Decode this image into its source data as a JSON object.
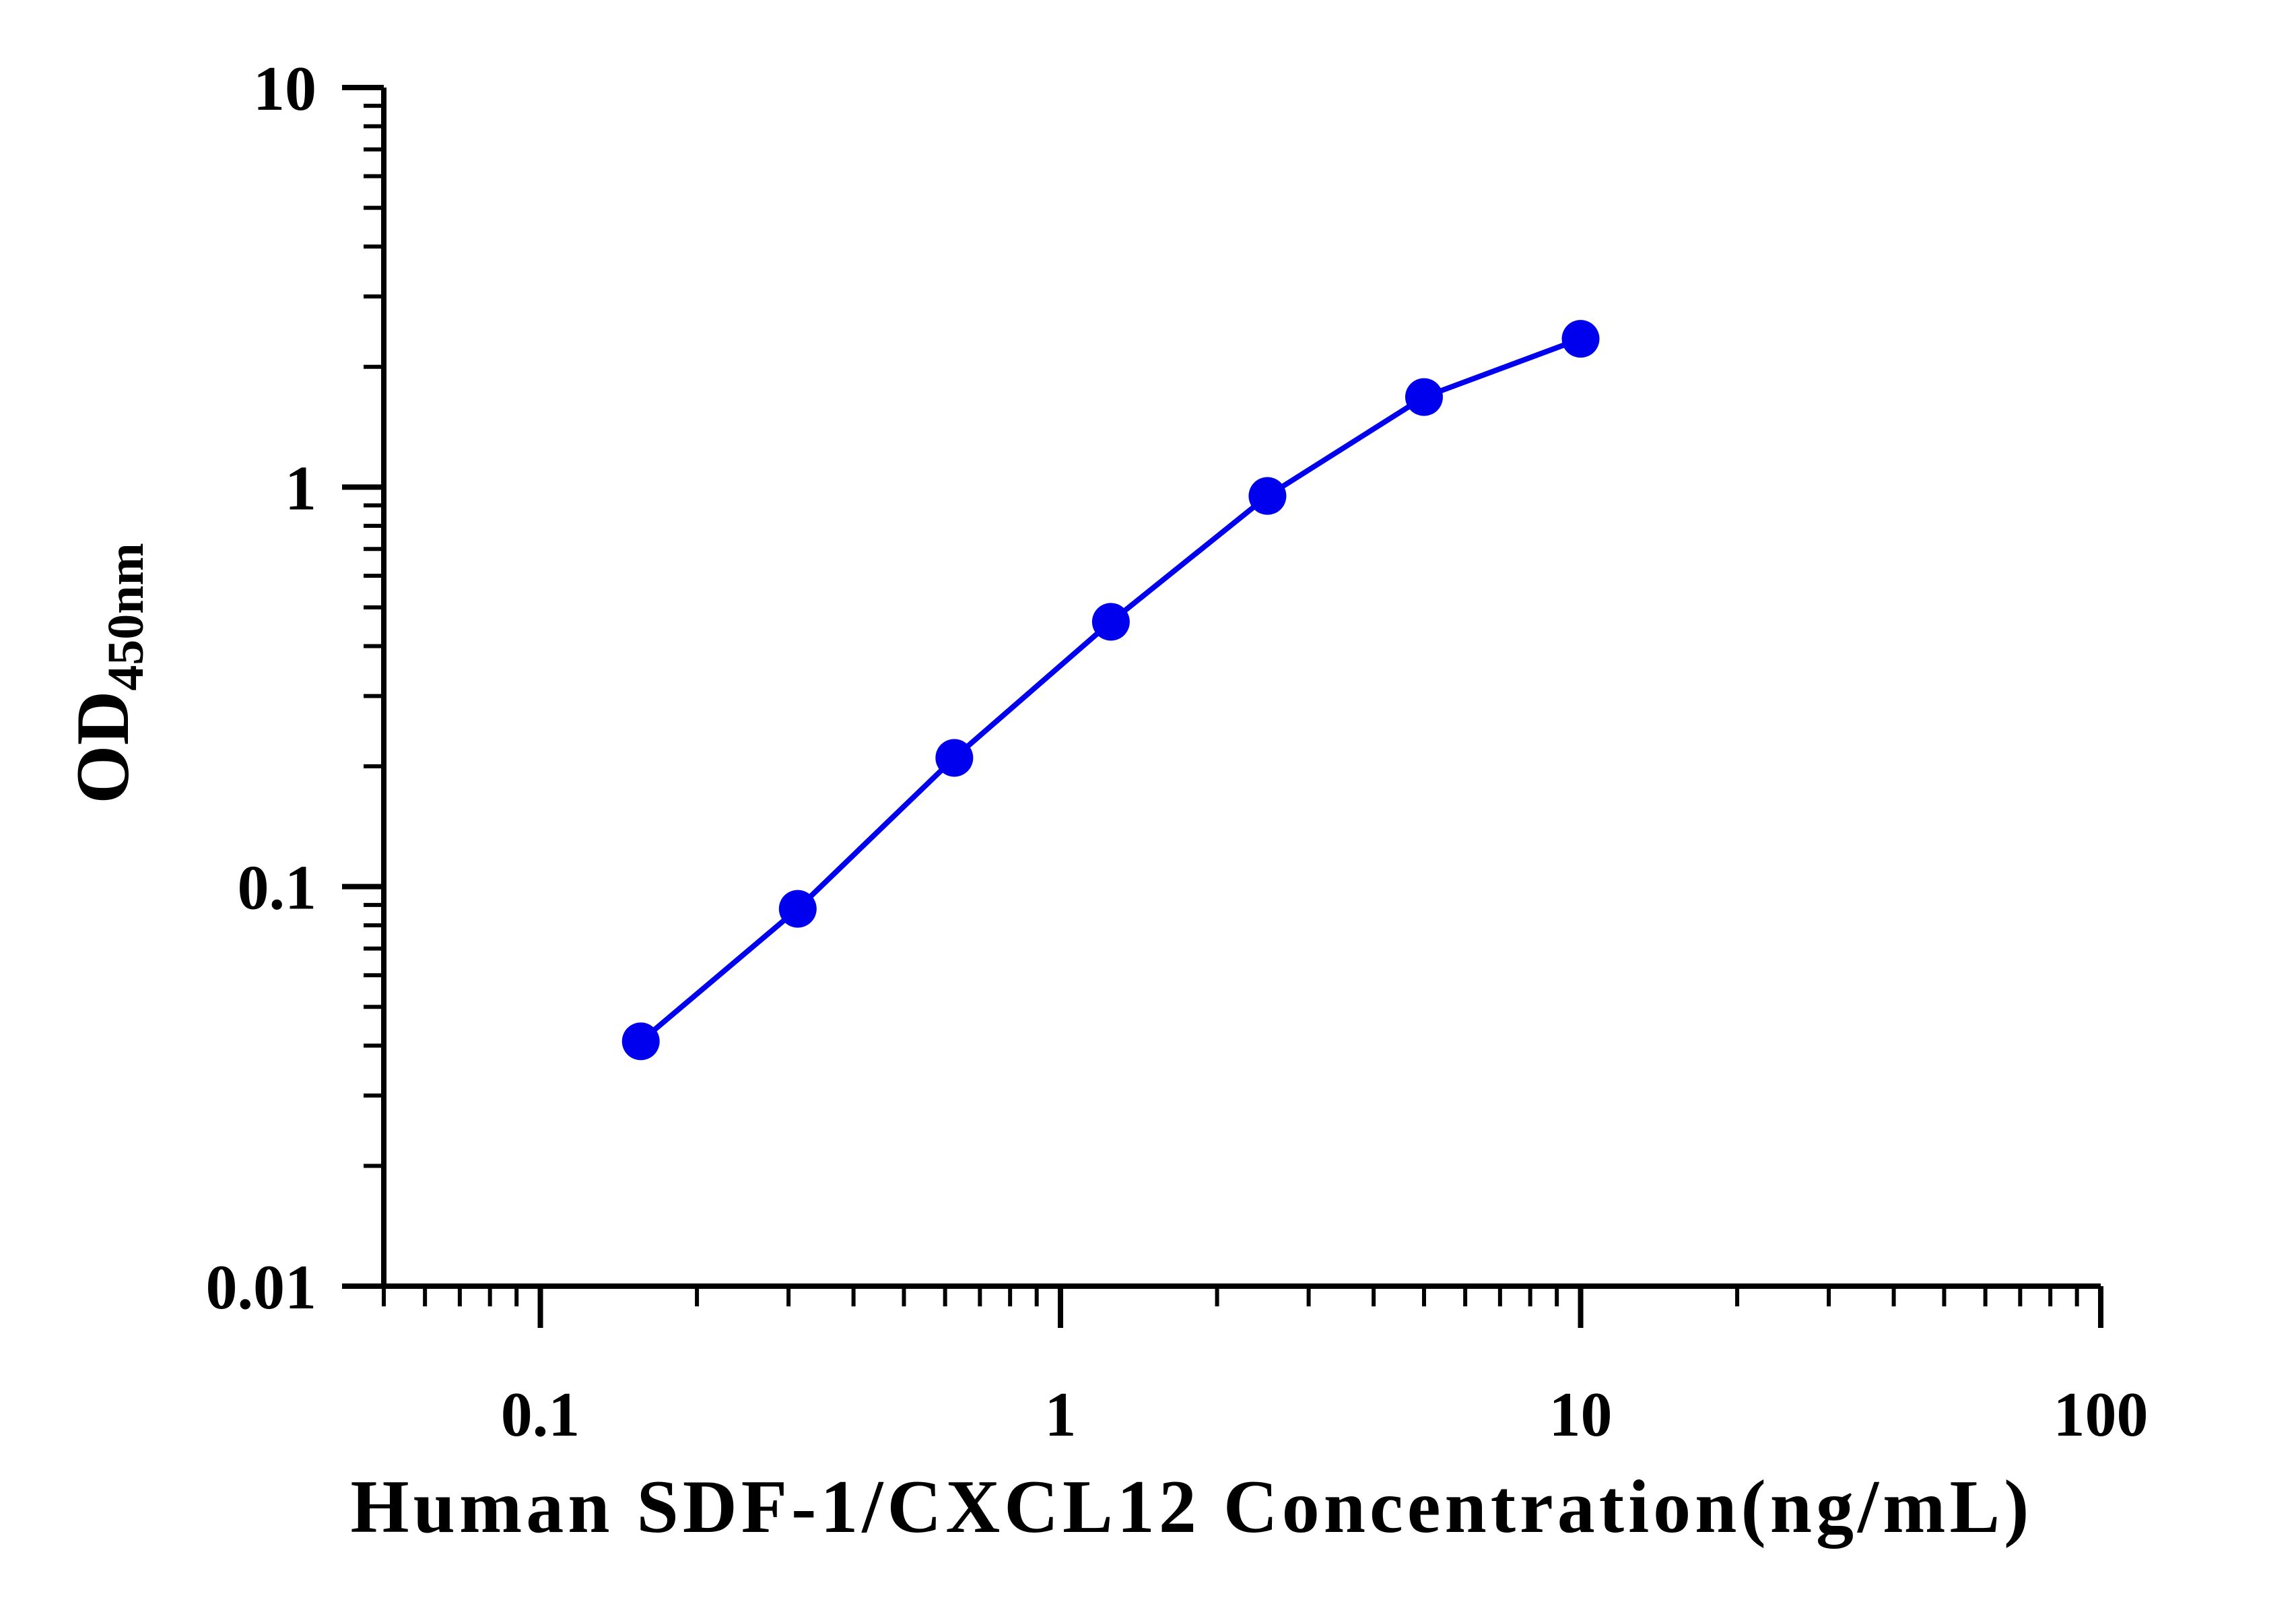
{
  "chart_data": {
    "type": "line",
    "title": "",
    "xlabel": "Human SDF-1/CXCL12 Concentration(ng/mL)",
    "ylabel": {
      "main": "OD",
      "subscript": "450nm"
    },
    "x_scale": "log",
    "y_scale": "log",
    "xlim": [
      0.05,
      100
    ],
    "ylim": [
      0.01,
      10
    ],
    "x_ticks": [
      0.1,
      1,
      10,
      100
    ],
    "x_tick_labels": [
      "0.1",
      "1",
      "10",
      "100"
    ],
    "y_ticks": [
      0.01,
      0.1,
      1,
      10
    ],
    "y_tick_labels": [
      "0.01",
      "0.1",
      "1",
      "10"
    ],
    "grid": false,
    "legend": "none",
    "series": [
      {
        "color": "#0000EE",
        "marker": "circle",
        "x": [
          0.156,
          0.3125,
          0.625,
          1.25,
          2.5,
          5,
          10
        ],
        "y": [
          0.041,
          0.088,
          0.21,
          0.46,
          0.95,
          1.68,
          2.35
        ]
      }
    ]
  }
}
